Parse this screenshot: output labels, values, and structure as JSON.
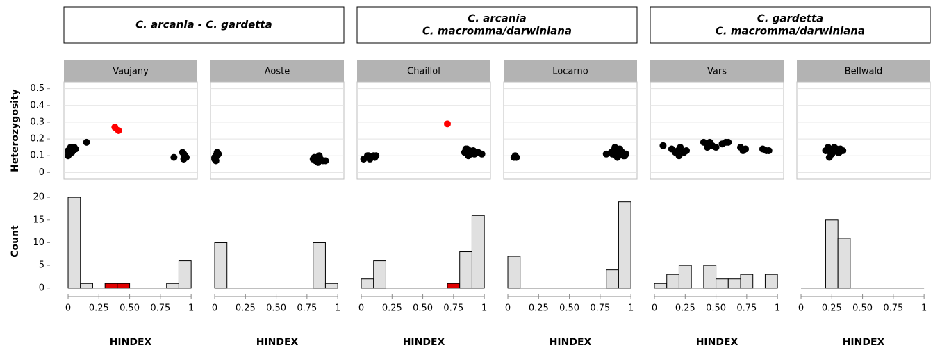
{
  "groups": [
    {
      "lines": [
        "C. arcania - C. gardetta"
      ]
    },
    {
      "lines": [
        "C. arcania",
        "C. macromma/darwiniana"
      ]
    },
    {
      "lines": [
        "C. gardetta",
        "C. macromma/darwiniana"
      ]
    }
  ],
  "chart_data": [
    {
      "type": "scatter",
      "title": "Vaujany",
      "ylabel": "Heterozygosity",
      "xlim": [
        -0.034,
        1.05
      ],
      "ylim": [
        -0.04,
        0.54
      ],
      "yticks": [
        0,
        0.1,
        0.2,
        0.3,
        0.4,
        0.5
      ],
      "grid": true,
      "series": [
        {
          "color": "#000000",
          "x": [
            0.0,
            0.01,
            0.02,
            0.03,
            0.04,
            0.05,
            0.01,
            0.03,
            0.06,
            0.0,
            0.02,
            0.15,
            0.86,
            0.93,
            0.94,
            0.95,
            0.96,
            0.94,
            0.95
          ],
          "y": [
            0.1,
            0.12,
            0.14,
            0.15,
            0.13,
            0.15,
            0.11,
            0.12,
            0.14,
            0.13,
            0.15,
            0.18,
            0.09,
            0.12,
            0.11,
            0.1,
            0.09,
            0.08,
            0.1
          ]
        },
        {
          "color": "#ff0000",
          "x": [
            0.38,
            0.41
          ],
          "y": [
            0.27,
            0.25
          ]
        }
      ]
    },
    {
      "type": "scatter",
      "title": "Aoste",
      "xlim": [
        -0.034,
        1.05
      ],
      "ylim": [
        -0.04,
        0.54
      ],
      "grid": true,
      "series": [
        {
          "color": "#000000",
          "x": [
            0.0,
            0.01,
            0.02,
            0.03,
            0.01,
            0.0,
            0.02,
            0.8,
            0.82,
            0.83,
            0.85,
            0.86,
            0.84,
            0.88,
            0.81,
            0.9,
            0.85
          ],
          "y": [
            0.08,
            0.1,
            0.12,
            0.11,
            0.07,
            0.09,
            0.1,
            0.08,
            0.07,
            0.09,
            0.1,
            0.08,
            0.06,
            0.07,
            0.09,
            0.07,
            0.09
          ]
        }
      ]
    },
    {
      "type": "scatter",
      "title": "Chaillol",
      "xlim": [
        -0.034,
        1.05
      ],
      "ylim": [
        -0.04,
        0.54
      ],
      "grid": true,
      "series": [
        {
          "color": "#000000",
          "x": [
            0.02,
            0.06,
            0.08,
            0.1,
            0.12,
            0.07,
            0.05,
            0.11,
            0.84,
            0.86,
            0.88,
            0.9,
            0.92,
            0.95,
            0.87,
            0.89,
            0.91,
            0.93,
            0.85,
            0.98
          ],
          "y": [
            0.08,
            0.1,
            0.09,
            0.1,
            0.1,
            0.08,
            0.1,
            0.09,
            0.12,
            0.14,
            0.13,
            0.12,
            0.11,
            0.12,
            0.1,
            0.11,
            0.13,
            0.12,
            0.14,
            0.11
          ]
        },
        {
          "color": "#ff0000",
          "x": [
            0.7
          ],
          "y": [
            0.29
          ]
        }
      ]
    },
    {
      "type": "scatter",
      "title": "Locarno",
      "xlim": [
        -0.034,
        1.05
      ],
      "ylim": [
        -0.04,
        0.54
      ],
      "grid": true,
      "series": [
        {
          "color": "#000000",
          "x": [
            0.05,
            0.06,
            0.07,
            0.8,
            0.84,
            0.86,
            0.88,
            0.9,
            0.92,
            0.94,
            0.96,
            0.87,
            0.89,
            0.91,
            0.93,
            0.95,
            0.85
          ],
          "y": [
            0.09,
            0.1,
            0.09,
            0.11,
            0.12,
            0.13,
            0.1,
            0.11,
            0.12,
            0.1,
            0.11,
            0.15,
            0.09,
            0.14,
            0.12,
            0.1,
            0.11
          ]
        }
      ]
    },
    {
      "type": "scatter",
      "title": "Vars",
      "xlim": [
        -0.034,
        1.05
      ],
      "ylim": [
        -0.04,
        0.54
      ],
      "grid": true,
      "series": [
        {
          "color": "#000000",
          "x": [
            0.07,
            0.14,
            0.17,
            0.19,
            0.21,
            0.24,
            0.26,
            0.2,
            0.4,
            0.43,
            0.45,
            0.47,
            0.5,
            0.55,
            0.58,
            0.6,
            0.43,
            0.7,
            0.72,
            0.74,
            0.88,
            0.91,
            0.93
          ],
          "y": [
            0.16,
            0.14,
            0.12,
            0.13,
            0.15,
            0.12,
            0.13,
            0.1,
            0.18,
            0.17,
            0.18,
            0.16,
            0.15,
            0.17,
            0.18,
            0.18,
            0.15,
            0.15,
            0.13,
            0.14,
            0.14,
            0.13,
            0.13
          ]
        }
      ]
    },
    {
      "type": "scatter",
      "title": "Bellwald",
      "xlim": [
        -0.034,
        1.05
      ],
      "ylim": [
        -0.04,
        0.54
      ],
      "grid": true,
      "series": [
        {
          "color": "#000000",
          "x": [
            0.2,
            0.22,
            0.24,
            0.26,
            0.28,
            0.3,
            0.32,
            0.34,
            0.23,
            0.27,
            0.31,
            0.25,
            0.29
          ],
          "y": [
            0.13,
            0.15,
            0.12,
            0.14,
            0.13,
            0.12,
            0.14,
            0.13,
            0.09,
            0.15,
            0.12,
            0.11,
            0.14
          ]
        }
      ]
    },
    {
      "type": "histogram",
      "ylabel": "Count",
      "xlabel": "HINDEX",
      "xlim": [
        -0.034,
        1.05
      ],
      "ylim": [
        -0.8,
        21.4
      ],
      "yticks": [
        0,
        5,
        10,
        15,
        20
      ],
      "xticks": [
        0,
        0.25,
        {
          "value": 0.5,
          "label": "0.50"
        },
        0.75,
        1
      ],
      "bins": [
        0,
        0.1,
        0.2,
        0.3,
        0.4,
        0.5,
        0.6,
        0.7,
        0.8,
        0.9,
        1
      ],
      "values": [
        20,
        1,
        0,
        1,
        1,
        0,
        0,
        0,
        1,
        6
      ],
      "colors": [
        "#e0e0e0",
        "#e0e0e0",
        "#e0e0e0",
        "#e00000",
        "#e00000",
        "#e0e0e0",
        "#e0e0e0",
        "#e0e0e0",
        "#e0e0e0",
        "#e0e0e0"
      ]
    },
    {
      "type": "histogram",
      "xlabel": "HINDEX",
      "xlim": [
        -0.034,
        1.05
      ],
      "ylim": [
        -0.8,
        21.4
      ],
      "xticks": [
        0,
        0.25,
        {
          "value": 0.5,
          "label": "0.50"
        },
        0.75,
        1
      ],
      "bins": [
        0,
        0.1,
        0.2,
        0.3,
        0.4,
        0.5,
        0.6,
        0.7,
        0.8,
        0.9,
        1
      ],
      "values": [
        10,
        0,
        0,
        0,
        0,
        0,
        0,
        0,
        10,
        1
      ],
      "colors": [
        "#e0e0e0",
        "#e0e0e0",
        "#e0e0e0",
        "#e0e0e0",
        "#e0e0e0",
        "#e0e0e0",
        "#e0e0e0",
        "#e0e0e0",
        "#e0e0e0",
        "#e0e0e0"
      ]
    },
    {
      "type": "histogram",
      "xlabel": "HINDEX",
      "xlim": [
        -0.034,
        1.05
      ],
      "ylim": [
        -0.8,
        21.4
      ],
      "xticks": [
        0,
        0.25,
        {
          "value": 0.5,
          "label": "0.50"
        },
        0.75,
        1
      ],
      "bins": [
        0,
        0.1,
        0.2,
        0.3,
        0.4,
        0.5,
        0.6,
        0.7,
        0.8,
        0.9,
        1
      ],
      "values": [
        2,
        6,
        0,
        0,
        0,
        0,
        0,
        1,
        8,
        16
      ],
      "colors": [
        "#e0e0e0",
        "#e0e0e0",
        "#e0e0e0",
        "#e0e0e0",
        "#e0e0e0",
        "#e0e0e0",
        "#e0e0e0",
        "#e00000",
        "#e0e0e0",
        "#e0e0e0"
      ]
    },
    {
      "type": "histogram",
      "xlabel": "HINDEX",
      "xlim": [
        -0.034,
        1.05
      ],
      "ylim": [
        -0.8,
        21.4
      ],
      "xticks": [
        0,
        0.25,
        {
          "value": 0.5,
          "label": "0.50"
        },
        0.75,
        1
      ],
      "bins": [
        0,
        0.1,
        0.2,
        0.3,
        0.4,
        0.5,
        0.6,
        0.7,
        0.8,
        0.9,
        1
      ],
      "values": [
        7,
        0,
        0,
        0,
        0,
        0,
        0,
        0,
        4,
        19
      ],
      "colors": [
        "#e0e0e0",
        "#e0e0e0",
        "#e0e0e0",
        "#e0e0e0",
        "#e0e0e0",
        "#e0e0e0",
        "#e0e0e0",
        "#e0e0e0",
        "#e0e0e0",
        "#e0e0e0"
      ]
    },
    {
      "type": "histogram",
      "xlabel": "HINDEX",
      "xlim": [
        -0.034,
        1.05
      ],
      "ylim": [
        -0.8,
        21.4
      ],
      "xticks": [
        0,
        0.25,
        {
          "value": 0.5,
          "label": "0.50"
        },
        0.75,
        1
      ],
      "bins": [
        0,
        0.1,
        0.2,
        0.3,
        0.4,
        0.5,
        0.6,
        0.7,
        0.8,
        0.9,
        1
      ],
      "values": [
        1,
        3,
        5,
        0,
        5,
        2,
        2,
        3,
        0,
        3
      ],
      "colors": [
        "#e0e0e0",
        "#e0e0e0",
        "#e0e0e0",
        "#e0e0e0",
        "#e0e0e0",
        "#e0e0e0",
        "#e0e0e0",
        "#e0e0e0",
        "#e0e0e0",
        "#e0e0e0"
      ]
    },
    {
      "type": "histogram",
      "xlabel": "HINDEX",
      "xlim": [
        -0.034,
        1.05
      ],
      "ylim": [
        -0.8,
        21.4
      ],
      "xticks": [
        0,
        0.25,
        {
          "value": 0.5,
          "label": "0.50"
        },
        0.75,
        1
      ],
      "bins": [
        0,
        0.1,
        0.2,
        0.3,
        0.4,
        0.5,
        0.6,
        0.7,
        0.8,
        0.9,
        1
      ],
      "values": [
        0,
        0,
        15,
        11,
        0,
        0,
        0,
        0,
        0,
        0
      ],
      "colors": [
        "#e0e0e0",
        "#e0e0e0",
        "#e0e0e0",
        "#e0e0e0",
        "#e0e0e0",
        "#e0e0e0",
        "#e0e0e0",
        "#e0e0e0",
        "#e0e0e0",
        "#e0e0e0"
      ]
    }
  ]
}
